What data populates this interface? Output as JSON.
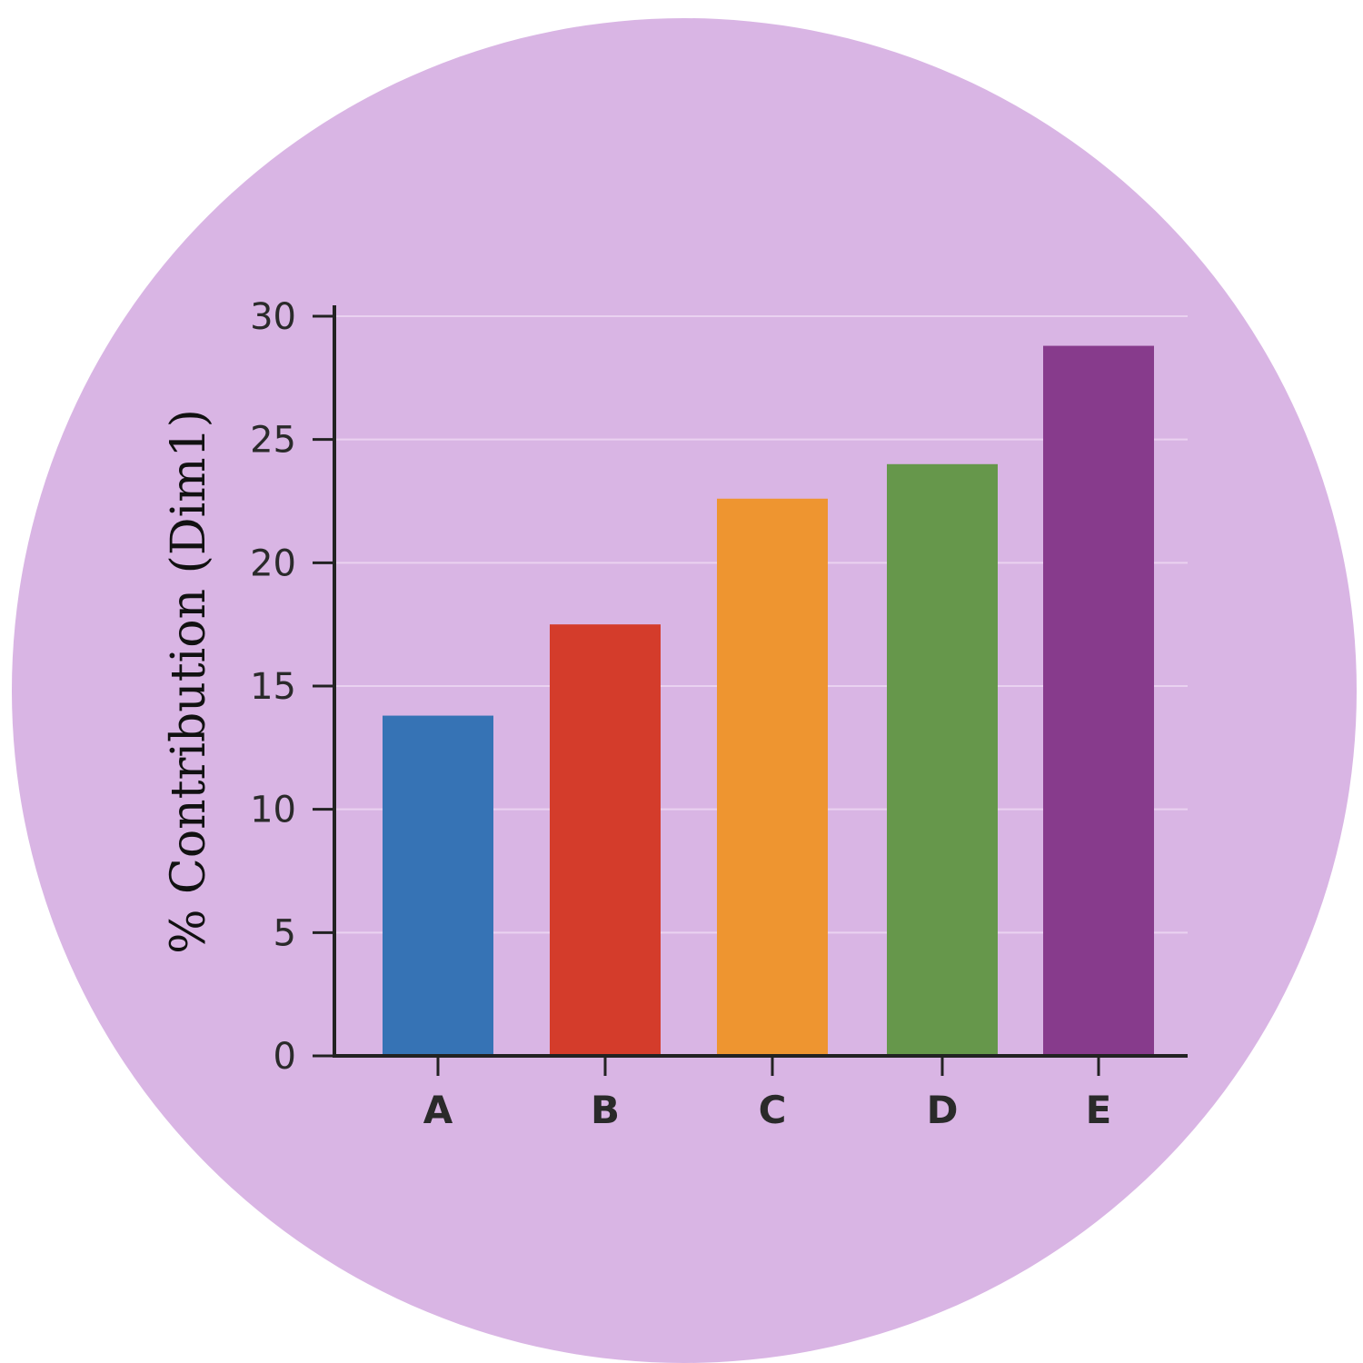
{
  "chart_data": {
    "type": "bar",
    "title": "",
    "xlabel": "",
    "ylabel": "% Contribution (Dim1)",
    "categories": [
      "A",
      "B",
      "C",
      "D",
      "E"
    ],
    "values": [
      13.8,
      17.5,
      22.6,
      24.0,
      28.8
    ],
    "colors": [
      "#3673b5",
      "#d43c2b",
      "#ee9530",
      "#66974b",
      "#873b8c"
    ],
    "ylim": [
      0,
      30
    ],
    "yticks": [
      0,
      5,
      10,
      15,
      20,
      25,
      30
    ],
    "grid": true,
    "legend": "none",
    "background_color": "#d9b5e4"
  }
}
